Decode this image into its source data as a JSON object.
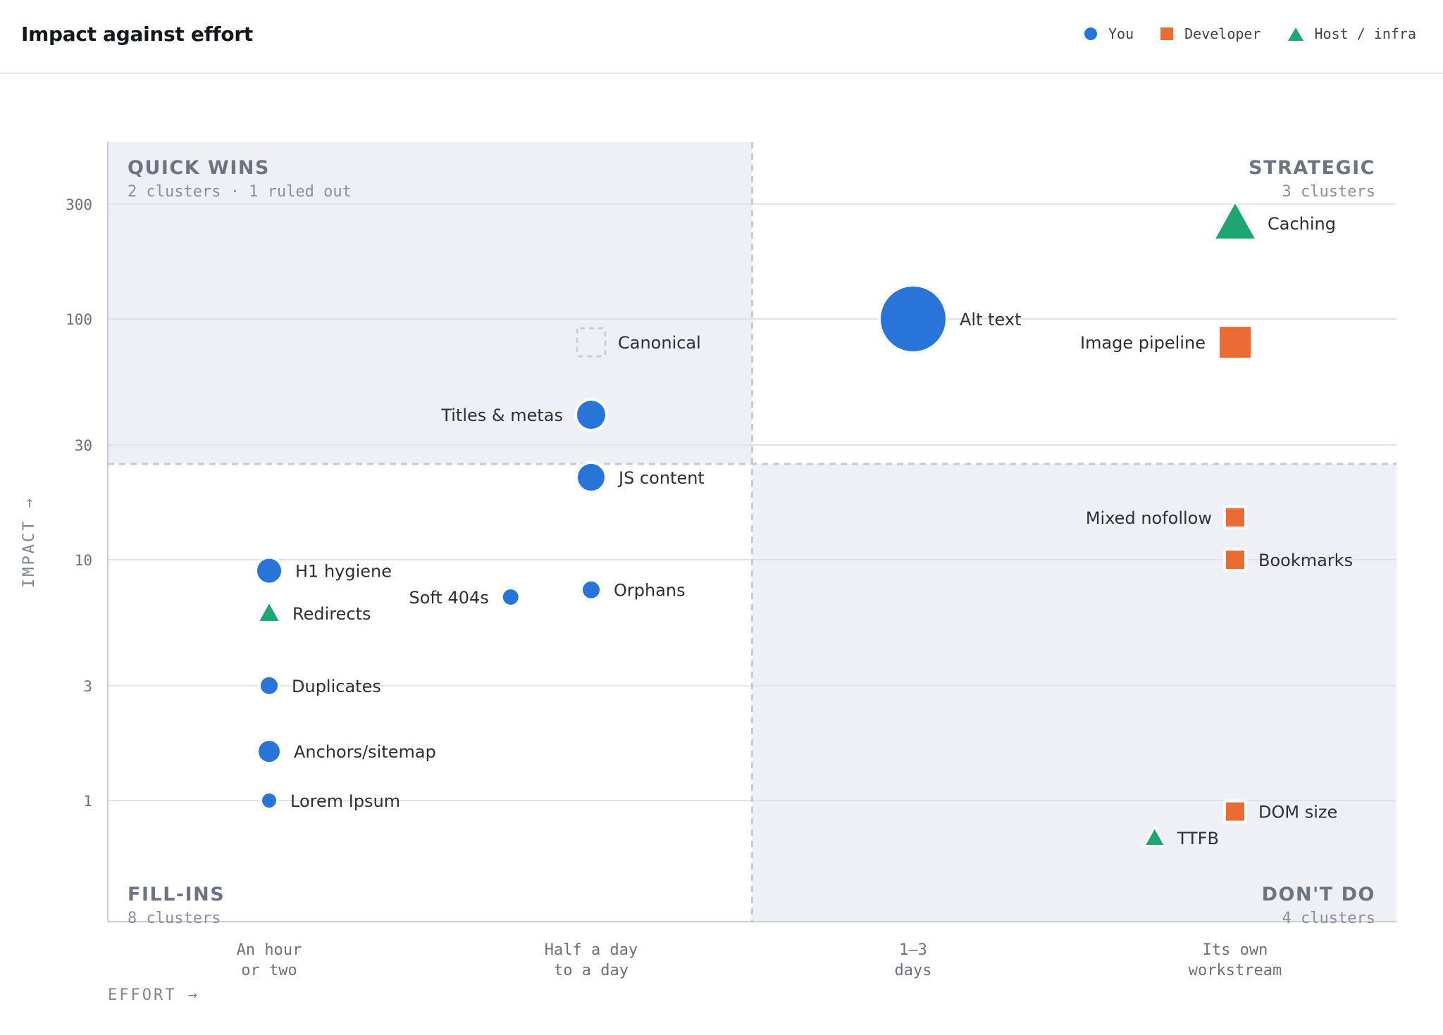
{
  "header": {
    "title": "Impact against effort",
    "legend": [
      {
        "label": "You",
        "shape": "circle",
        "color": "#2874d9"
      },
      {
        "label": "Developer",
        "shape": "square",
        "color": "#ec6a33"
      },
      {
        "label": "Host / infra",
        "shape": "triangle",
        "color": "#1ea672"
      }
    ]
  },
  "chart_data": {
    "type": "scatter",
    "title": "Impact against effort",
    "xlabel": "EFFORT →",
    "ylabel": "IMPACT →",
    "y_scale": "log",
    "ylim": [
      0.3,
      600
    ],
    "y_ticks": [
      "300",
      "100",
      "30",
      "10",
      "3",
      "1"
    ],
    "y_tick_values": [
      300,
      100,
      30,
      10,
      3,
      1
    ],
    "x_categories": [
      [
        "An hour",
        "or two"
      ],
      [
        "Half a day",
        "to a day"
      ],
      [
        "1–3",
        "days"
      ],
      [
        "Its own",
        "workstream"
      ]
    ],
    "effort_divider": 2.5,
    "impact_divider": 25,
    "grid": true,
    "legend_placement": "top-right",
    "quadrants": [
      {
        "title": "QUICK WINS",
        "subtitle": "2 clusters · 1 ruled out",
        "position": "top-left",
        "shaded": true
      },
      {
        "title": "STRATEGIC",
        "subtitle": "3 clusters",
        "position": "top-right",
        "shaded": false
      },
      {
        "title": "FILL-INS",
        "subtitle": "8 clusters",
        "position": "bottom-left",
        "shaded": false
      },
      {
        "title": "DON'T DO",
        "subtitle": "4 clusters",
        "position": "bottom-right",
        "shaded": true
      }
    ],
    "colors": {
      "you": "#2874d9",
      "developer": "#ec6a33",
      "host": "#1ea672"
    },
    "points": [
      {
        "label": "Caching",
        "owner": "host",
        "effort": 4,
        "impact": 250,
        "size": 28,
        "label_side": "right"
      },
      {
        "label": "Alt text",
        "owner": "you",
        "effort": 3,
        "impact": 100,
        "size": 48,
        "label_side": "right"
      },
      {
        "label": "Image pipeline",
        "owner": "developer",
        "effort": 4,
        "impact": 80,
        "size": 24,
        "label_side": "left"
      },
      {
        "label": "Canonical",
        "owner": "ruled_out",
        "effort": 2,
        "impact": 80,
        "size": 20,
        "label_side": "right"
      },
      {
        "label": "Titles & metas",
        "owner": "you",
        "effort": 2,
        "impact": 40,
        "size": 22,
        "label_side": "left"
      },
      {
        "label": "JS content",
        "owner": "you",
        "effort": 2,
        "impact": 22,
        "size": 21,
        "label_side": "right"
      },
      {
        "label": "Mixed nofollow",
        "owner": "developer",
        "effort": 4,
        "impact": 15,
        "size": 15,
        "label_side": "left"
      },
      {
        "label": "Bookmarks",
        "owner": "developer",
        "effort": 4,
        "impact": 10,
        "size": 15,
        "label_side": "right"
      },
      {
        "label": "H1 hygiene",
        "owner": "you",
        "effort": 1,
        "impact": 9,
        "size": 19,
        "label_side": "right"
      },
      {
        "label": "Soft 404s",
        "owner": "you",
        "effort": 1.75,
        "impact": 7,
        "size": 13,
        "label_side": "left"
      },
      {
        "label": "Orphans",
        "owner": "you",
        "effort": 2,
        "impact": 7.5,
        "size": 14,
        "label_side": "right"
      },
      {
        "label": "Redirects",
        "owner": "host",
        "effort": 1,
        "impact": 6,
        "size": 15,
        "label_side": "right"
      },
      {
        "label": "Duplicates",
        "owner": "you",
        "effort": 1,
        "impact": 3,
        "size": 14,
        "label_side": "right"
      },
      {
        "label": "Anchors/sitemap",
        "owner": "you",
        "effort": 1,
        "impact": 1.6,
        "size": 17,
        "label_side": "right"
      },
      {
        "label": "Lorem Ipsum",
        "owner": "you",
        "effort": 1,
        "impact": 1,
        "size": 12,
        "label_side": "right"
      },
      {
        "label": "DOM size",
        "owner": "developer",
        "effort": 4,
        "impact": 0.9,
        "size": 15,
        "label_side": "right"
      },
      {
        "label": "TTFB",
        "owner": "host",
        "effort": 3.75,
        "impact": 0.7,
        "size": 14,
        "label_side": "right"
      }
    ]
  }
}
